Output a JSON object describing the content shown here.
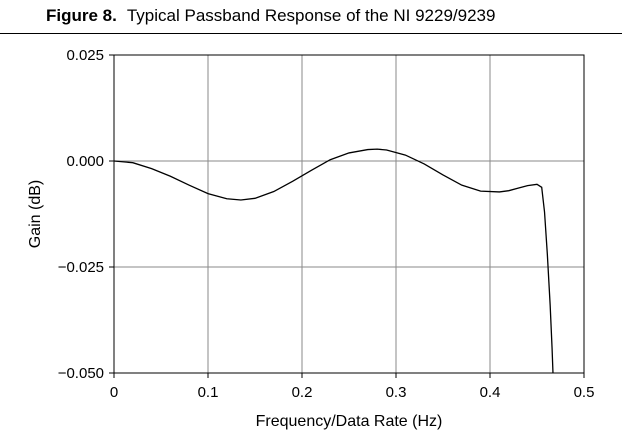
{
  "figure": {
    "number": "Figure 8.",
    "caption": "Typical Passband Response of the NI 9229/9239"
  },
  "chart_data": {
    "type": "line",
    "title": "",
    "xlabel": "Frequency/Data Rate (Hz)",
    "ylabel": "Gain (dB)",
    "xlim": [
      0,
      0.5
    ],
    "ylim": [
      -0.05,
      0.025
    ],
    "xticks": [
      0,
      0.1,
      0.2,
      0.3,
      0.4,
      0.5
    ],
    "xtick_labels": [
      "0",
      "0.1",
      "0.2",
      "0.3",
      "0.4",
      "0.5"
    ],
    "yticks": [
      0.025,
      0.0,
      -0.025,
      -0.05
    ],
    "ytick_labels": [
      "0.025",
      "0.000",
      "−0.025",
      "−0.050"
    ],
    "grid": true,
    "legend": "none",
    "line_color": "#000000",
    "series": [
      {
        "x": [
          0,
          0.02,
          0.04,
          0.06,
          0.08,
          0.1,
          0.12,
          0.135,
          0.15,
          0.17,
          0.19,
          0.21,
          0.23,
          0.25,
          0.27,
          0.28,
          0.29,
          0.31,
          0.33,
          0.35,
          0.37,
          0.39,
          0.41,
          0.42,
          0.43,
          0.44,
          0.45,
          0.455,
          0.458,
          0.461,
          0.464,
          0.466,
          0.467
        ],
        "y": [
          0,
          -0.0004,
          -0.0018,
          -0.0036,
          -0.0057,
          -0.0077,
          -0.0089,
          -0.0092,
          -0.0088,
          -0.0072,
          -0.0048,
          -0.0022,
          0.0003,
          0.0019,
          0.0027,
          0.0028,
          0.0026,
          0.0014,
          -0.0007,
          -0.0033,
          -0.0057,
          -0.0071,
          -0.0073,
          -0.007,
          -0.0064,
          -0.0058,
          -0.0055,
          -0.0062,
          -0.012,
          -0.022,
          -0.034,
          -0.044,
          -0.05
        ]
      }
    ]
  }
}
